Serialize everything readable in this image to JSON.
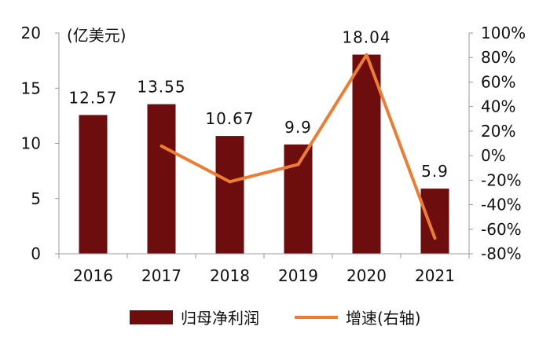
{
  "chart_data": {
    "type": "bar+line",
    "categories": [
      "2016",
      "2017",
      "2018",
      "2019",
      "2020",
      "2021"
    ],
    "unit_label": "(亿美元)",
    "series": [
      {
        "name": "归母净利润",
        "type": "bar",
        "axis": "left",
        "values": [
          12.57,
          13.55,
          10.67,
          9.9,
          18.04,
          5.9
        ],
        "data_labels": [
          "12.57",
          "13.55",
          "10.67",
          "9.9",
          "18.04",
          "5.9"
        ],
        "color": "#6e0d0d"
      },
      {
        "name": "增速(右轴)",
        "type": "line",
        "axis": "right",
        "values": [
          null,
          7.8,
          -21.3,
          -7.2,
          82.2,
          -67.3
        ],
        "color": "#ec7d32"
      }
    ],
    "left_axis": {
      "min": 0,
      "max": 20,
      "ticks": [
        "0",
        "5",
        "10",
        "15",
        "20"
      ]
    },
    "right_axis": {
      "min": -80,
      "max": 100,
      "ticks": [
        "-80%",
        "-60%",
        "-40%",
        "-20%",
        "0%",
        "20%",
        "40%",
        "60%",
        "80%",
        "100%"
      ]
    },
    "grid": false,
    "legend": "bottom"
  }
}
